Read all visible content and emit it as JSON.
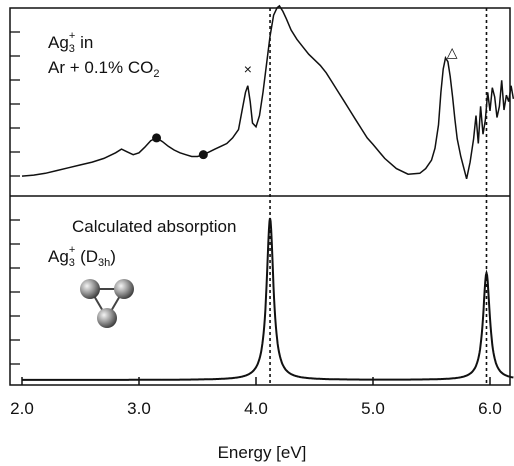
{
  "chart_data": [
    {
      "type": "line",
      "panel": "top",
      "label": {
        "base": "Ag",
        "sub": "3",
        "sup": "+",
        "line1_rest": " in",
        "line2": "Ar + 0.1% CO",
        "line2_sub": "2"
      },
      "xlabel": "Energy [eV]",
      "xlim": [
        2.0,
        6.2
      ],
      "xticks": [
        "2.0",
        "3.0",
        "4.0",
        "5.0",
        "6.0"
      ],
      "y_units": "arbitrary",
      "series": [
        {
          "x": [
            2.0,
            2.1,
            2.2,
            2.3,
            2.4,
            2.5,
            2.6,
            2.7,
            2.8,
            2.85,
            2.9,
            2.95,
            3.0,
            3.05,
            3.1,
            3.15,
            3.2,
            3.25,
            3.3,
            3.35,
            3.4,
            3.45,
            3.5,
            3.55,
            3.6,
            3.65,
            3.7,
            3.75,
            3.8,
            3.85,
            3.88,
            3.91,
            3.93,
            3.95,
            3.97,
            4.0,
            4.03,
            4.06,
            4.09,
            4.12,
            4.15,
            4.18,
            4.2,
            4.23,
            4.26,
            4.3,
            4.35,
            4.4,
            4.45,
            4.5,
            4.55,
            4.6,
            4.65,
            4.7,
            4.75,
            4.8,
            4.85,
            4.9,
            4.95,
            5.0,
            5.1,
            5.2,
            5.3,
            5.4,
            5.45,
            5.5,
            5.53,
            5.56,
            5.58,
            5.6,
            5.62,
            5.64,
            5.66,
            5.68,
            5.7,
            5.72,
            5.75,
            5.8,
            5.83,
            5.86,
            5.88,
            5.9,
            5.92,
            5.94,
            5.96,
            5.98,
            6.0,
            6.02,
            6.04,
            6.06,
            6.08,
            6.1,
            6.12,
            6.14,
            6.16,
            6.18,
            6.2
          ],
          "y": [
            1.5,
            1.6,
            1.8,
            2.1,
            2.4,
            2.7,
            3.0,
            3.4,
            4.0,
            4.4,
            4.1,
            3.8,
            4.0,
            4.6,
            5.3,
            5.6,
            5.2,
            4.7,
            4.3,
            4.0,
            3.8,
            3.6,
            3.6,
            3.8,
            4.1,
            4.4,
            4.7,
            5.0,
            5.6,
            6.5,
            8.5,
            10.5,
            11.2,
            9.5,
            7.2,
            6.8,
            8.0,
            10.5,
            13.5,
            16.5,
            18.8,
            19.6,
            19.8,
            19.2,
            18.4,
            17.2,
            16.2,
            15.4,
            14.6,
            14.0,
            13.4,
            12.6,
            11.6,
            10.6,
            9.6,
            8.6,
            7.6,
            6.6,
            5.6,
            4.9,
            3.4,
            2.3,
            1.7,
            1.8,
            2.3,
            3.2,
            4.5,
            7.0,
            10.5,
            13.0,
            14.2,
            13.8,
            12.2,
            10.0,
            7.6,
            5.5,
            3.6,
            1.2,
            3.0,
            5.5,
            8.0,
            5.0,
            9.0,
            6.0,
            7.5,
            10.5,
            8.5,
            11.0,
            10.0,
            7.8,
            9.0,
            11.8,
            8.6,
            10.2,
            9.5,
            11.2,
            9.8
          ]
        }
      ],
      "annotations": [
        {
          "symbol": "×",
          "x": 3.93
        },
        {
          "symbol": "△",
          "x": 4.2
        },
        {
          "symbol": "△",
          "x": 5.6
        },
        {
          "symbol": "●",
          "x": 3.15
        },
        {
          "symbol": "●",
          "x": 3.55
        }
      ],
      "reference_lines": [
        4.12,
        5.97
      ]
    },
    {
      "type": "line",
      "panel": "bottom",
      "title": "Calculated absorption",
      "label": {
        "base": "Ag",
        "sub": "3",
        "sup": "+",
        "rest_open": " (D",
        "rest_sub": "3h",
        "rest_close": ")"
      },
      "xlim": [
        2.0,
        6.2
      ],
      "y_units": "arbitrary",
      "peaks": [
        {
          "center": 4.12,
          "height": 10.0,
          "width": 0.035
        },
        {
          "center": 5.97,
          "height": 6.6,
          "width": 0.035
        }
      ],
      "reference_lines": [
        4.12,
        5.97
      ]
    }
  ]
}
